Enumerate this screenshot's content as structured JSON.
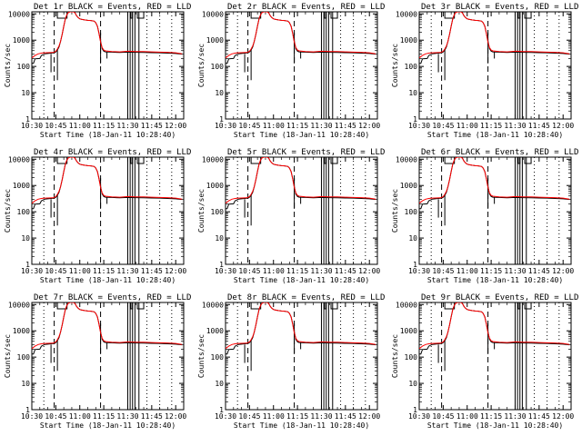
{
  "figure": {
    "xlabel": "Start Time (18-Jan-11 10:28:40)",
    "ylabel": "Counts/sec",
    "x_tick_labels": [
      "10:30",
      "10:45",
      "11:00",
      "11:15",
      "11:30",
      "11:45",
      "12:00"
    ],
    "y_tick_labels": [
      "1",
      "10",
      "100",
      "1000",
      "10000"
    ],
    "colors": {
      "events": "#000000",
      "lld": "#ff0000",
      "background": "#ffffff"
    }
  },
  "chart_data": [
    {
      "type": "line",
      "title": "Det 1r BLACK = Events, RED = LLD",
      "xlabel": "Start Time (18-Jan-11 10:28:40)",
      "ylabel": "Counts/sec",
      "xlim": [
        "10:30",
        "12:05"
      ],
      "ylim": [
        1,
        12000
      ],
      "y_scale": "log",
      "series": [
        {
          "name": "Events"
        },
        {
          "name": "LLD"
        }
      ]
    },
    {
      "type": "line",
      "title": "Det 2r BLACK = Events, RED = LLD",
      "xlabel": "Start Time (18-Jan-11 10:28:40)",
      "ylabel": "Counts/sec",
      "xlim": [
        "10:30",
        "12:05"
      ],
      "ylim": [
        1,
        12000
      ],
      "y_scale": "log",
      "series": [
        {
          "name": "Events"
        },
        {
          "name": "LLD"
        }
      ]
    },
    {
      "type": "line",
      "title": "Det 3r BLACK = Events, RED = LLD",
      "xlabel": "Start Time (18-Jan-11 10:28:40)",
      "ylabel": "Counts/sec",
      "xlim": [
        "10:30",
        "12:05"
      ],
      "ylim": [
        1,
        12000
      ],
      "y_scale": "log",
      "series": [
        {
          "name": "Events"
        },
        {
          "name": "LLD"
        }
      ]
    },
    {
      "type": "line",
      "title": "Det 4r BLACK = Events, RED = LLD",
      "xlabel": "Start Time (18-Jan-11 10:28:40)",
      "ylabel": "Counts/sec",
      "xlim": [
        "10:30",
        "12:05"
      ],
      "ylim": [
        1,
        12000
      ],
      "y_scale": "log",
      "series": [
        {
          "name": "Events"
        },
        {
          "name": "LLD"
        }
      ]
    },
    {
      "type": "line",
      "title": "Det 5r BLACK = Events, RED = LLD",
      "xlabel": "Start Time (18-Jan-11 10:28:40)",
      "ylabel": "Counts/sec",
      "xlim": [
        "10:30",
        "12:05"
      ],
      "ylim": [
        1,
        12000
      ],
      "y_scale": "log",
      "series": [
        {
          "name": "Events"
        },
        {
          "name": "LLD"
        }
      ]
    },
    {
      "type": "line",
      "title": "Det 6r BLACK = Events, RED = LLD",
      "xlabel": "Start Time (18-Jan-11 10:28:40)",
      "ylabel": "Counts/sec",
      "xlim": [
        "10:30",
        "12:05"
      ],
      "ylim": [
        1,
        12000
      ],
      "y_scale": "log",
      "series": [
        {
          "name": "Events"
        },
        {
          "name": "LLD"
        }
      ]
    },
    {
      "type": "line",
      "title": "Det 7r BLACK = Events, RED = LLD",
      "xlabel": "Start Time (18-Jan-11 10:28:40)",
      "ylabel": "Counts/sec",
      "xlim": [
        "10:30",
        "12:05"
      ],
      "ylim": [
        1,
        12000
      ],
      "y_scale": "log",
      "series": [
        {
          "name": "Events"
        },
        {
          "name": "LLD"
        }
      ]
    },
    {
      "type": "line",
      "title": "Det 8r BLACK = Events, RED = LLD",
      "xlabel": "Start Time (18-Jan-11 10:28:40)",
      "ylabel": "Counts/sec",
      "xlim": [
        "10:30",
        "12:05"
      ],
      "ylim": [
        1,
        12000
      ],
      "y_scale": "log",
      "series": [
        {
          "name": "Events"
        },
        {
          "name": "LLD"
        }
      ]
    },
    {
      "type": "line",
      "title": "Det 9r BLACK = Events, RED = LLD",
      "xlabel": "Start Time (18-Jan-11 10:28:40)",
      "ylabel": "Counts/sec",
      "xlim": [
        "10:30",
        "12:05"
      ],
      "ylim": [
        1,
        12000
      ],
      "y_scale": "log",
      "series": [
        {
          "name": "Events"
        },
        {
          "name": "LLD"
        }
      ]
    }
  ]
}
